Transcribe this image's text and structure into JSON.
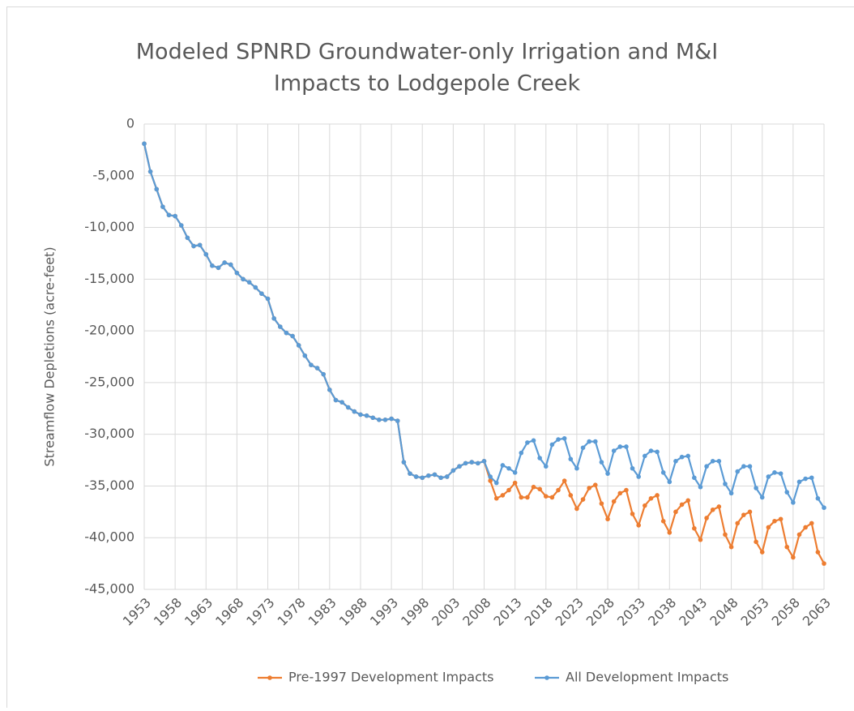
{
  "chart_data": {
    "type": "line",
    "title": [
      "Modeled SPNRD Groundwater-only Irrigation and M&I",
      "Impacts to Lodgepole Creek"
    ],
    "y_label": "Streamflow Depletions (acre-feet)",
    "x": [
      1953,
      1954,
      1955,
      1956,
      1957,
      1958,
      1959,
      1960,
      1961,
      1962,
      1963,
      1964,
      1965,
      1966,
      1967,
      1968,
      1969,
      1970,
      1971,
      1972,
      1973,
      1974,
      1975,
      1976,
      1977,
      1978,
      1979,
      1980,
      1981,
      1982,
      1983,
      1984,
      1985,
      1986,
      1987,
      1988,
      1989,
      1990,
      1991,
      1992,
      1993,
      1994,
      1995,
      1996,
      1997,
      1998,
      1999,
      2000,
      2001,
      2002,
      2003,
      2004,
      2005,
      2006,
      2007,
      2008,
      2009,
      2010,
      2011,
      2012,
      2013,
      2014,
      2015,
      2016,
      2017,
      2018,
      2019,
      2020,
      2021,
      2022,
      2023,
      2024,
      2025,
      2026,
      2027,
      2028,
      2029,
      2030,
      2031,
      2032,
      2033,
      2034,
      2035,
      2036,
      2037,
      2038,
      2039,
      2040,
      2041,
      2042,
      2043,
      2044,
      2045,
      2046,
      2047,
      2048,
      2049,
      2050,
      2051,
      2052,
      2053,
      2054,
      2055,
      2056,
      2057,
      2058,
      2059,
      2060,
      2061,
      2062,
      2063
    ],
    "series": [
      {
        "name": "Pre-1997 Development Impacts",
        "color": "#ed7d31",
        "values": [
          -1900,
          -4600,
          -6300,
          -8000,
          -8800,
          -8900,
          -9800,
          -11000,
          -11800,
          -11700,
          -12600,
          -13700,
          -13900,
          -13400,
          -13600,
          -14400,
          -15000,
          -15300,
          -15800,
          -16400,
          -16900,
          -18800,
          -19600,
          -20200,
          -20500,
          -21400,
          -22400,
          -23300,
          -23600,
          -24200,
          -25700,
          -26700,
          -26900,
          -27400,
          -27800,
          -28100,
          -28200,
          -28400,
          -28600,
          -28600,
          -28500,
          -28700,
          -32700,
          -33800,
          -34100,
          -34200,
          -34000,
          -33900,
          -34200,
          -34100,
          -33500,
          -33100,
          -32800,
          -32700,
          -32800,
          -32600,
          -34500,
          -36200,
          -35900,
          -35400,
          -34700,
          -36100,
          -36100,
          -35100,
          -35300,
          -36000,
          -36100,
          -35400,
          -34500,
          -35900,
          -37200,
          -36300,
          -35200,
          -34900,
          -36700,
          -38200,
          -36500,
          -35700,
          -35400,
          -37700,
          -38800,
          -36900,
          -36200,
          -35900,
          -38400,
          -39500,
          -37500,
          -36800,
          -36400,
          -39100,
          -40200,
          -38100,
          -37300,
          -37000,
          -39700,
          -40900,
          -38600,
          -37800,
          -37500,
          -40400,
          -41400,
          -39000,
          -38400,
          -38200,
          -40900,
          -41900,
          -39700,
          -39000,
          -38600,
          -41400,
          -42500
        ]
      },
      {
        "name": "All Development Impacts",
        "color": "#5b9bd5",
        "values": [
          -1900,
          -4600,
          -6300,
          -8000,
          -8800,
          -8900,
          -9800,
          -11000,
          -11800,
          -11700,
          -12600,
          -13700,
          -13900,
          -13400,
          -13600,
          -14400,
          -15000,
          -15300,
          -15800,
          -16400,
          -16900,
          -18800,
          -19600,
          -20200,
          -20500,
          -21400,
          -22400,
          -23300,
          -23600,
          -24200,
          -25700,
          -26700,
          -26900,
          -27400,
          -27800,
          -28100,
          -28200,
          -28400,
          -28600,
          -28600,
          -28500,
          -28700,
          -32700,
          -33800,
          -34100,
          -34200,
          -34000,
          -33900,
          -34200,
          -34100,
          -33500,
          -33100,
          -32800,
          -32700,
          -32800,
          -32600,
          -34100,
          -34700,
          -33000,
          -33300,
          -33700,
          -31800,
          -30800,
          -30600,
          -32300,
          -33100,
          -31000,
          -30500,
          -30400,
          -32400,
          -33300,
          -31300,
          -30700,
          -30700,
          -32700,
          -33800,
          -31600,
          -31200,
          -31200,
          -33300,
          -34100,
          -32100,
          -31600,
          -31700,
          -33700,
          -34600,
          -32600,
          -32200,
          -32100,
          -34200,
          -35100,
          -33100,
          -32600,
          -32600,
          -34800,
          -35700,
          -33600,
          -33100,
          -33100,
          -35200,
          -36100,
          -34100,
          -33700,
          -33800,
          -35600,
          -36600,
          -34600,
          -34300,
          -34200,
          -36200,
          -37100
        ]
      }
    ],
    "xlim": [
      1953,
      2063
    ],
    "xticks": [
      1953,
      1958,
      1963,
      1968,
      1973,
      1978,
      1983,
      1988,
      1993,
      1998,
      2003,
      2008,
      2013,
      2018,
      2023,
      2028,
      2033,
      2038,
      2043,
      2048,
      2053,
      2058,
      2063
    ],
    "ylim": [
      -45000,
      0
    ],
    "yticks": [
      0,
      {
        "value": -5000,
        "label": "-5,000"
      },
      {
        "value": -10000,
        "label": "-10,000"
      },
      {
        "value": -15000,
        "label": "-15,000"
      },
      {
        "value": -20000,
        "label": "-20,000"
      },
      {
        "value": -25000,
        "label": "-25,000"
      },
      {
        "value": -30000,
        "label": "-30,000"
      },
      {
        "value": -35000,
        "label": "-35,000"
      },
      {
        "value": -40000,
        "label": "-40,000"
      },
      {
        "value": -45000,
        "label": "-45,000"
      }
    ],
    "grid": true,
    "legend": "bottom"
  }
}
